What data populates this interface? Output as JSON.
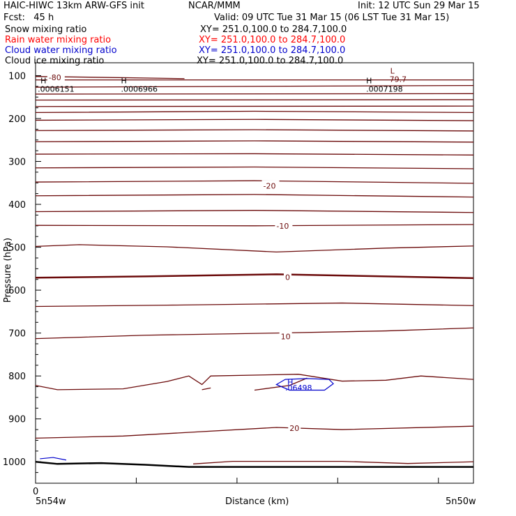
{
  "header": {
    "title": "HAIC-HIWC 13km ARW-GFS init",
    "org": "NCAR/MMM",
    "init": "Init: 12 UTC Sun 29 Mar 15",
    "fcst": "Fcst:   45 h",
    "valid": "Valid: 09 UTC Tue 31 Mar 15 (06 LST Tue 31 Mar 15)"
  },
  "fields": [
    {
      "name": "Snow mixing ratio",
      "xy": "XY= 251.0,100.0 to 284.7,100.0",
      "color": "#000000"
    },
    {
      "name": "Rain water mixing ratio",
      "xy": "XY= 251.0,100.0 to 284.7,100.0",
      "color": "#ff0000"
    },
    {
      "name": "Cloud water mixing ratio",
      "xy": "XY= 251.0,100.0 to 284.7,100.0",
      "color": "#0000cc"
    },
    {
      "name": "Cloud ice mixing ratio",
      "xy": "XY= 251.0,100.0 to 284.7,100.0",
      "color": "#000000"
    }
  ],
  "chart_data": {
    "type": "line",
    "xlabel": "Distance (km)",
    "ylabel": "Pressure (hPa)",
    "x_ticks": [
      "0"
    ],
    "x_end_labels": [
      "5n54w",
      "5n50w"
    ],
    "y_ticks": [
      100,
      200,
      300,
      400,
      500,
      600,
      700,
      800,
      900,
      1000
    ],
    "ylim": [
      1050,
      70
    ],
    "xlim": [
      0,
      100
    ],
    "contour_color": "#6b0a0a",
    "contour_labels": [
      "-80",
      "-20",
      "-10",
      "0",
      "10",
      "20"
    ],
    "series": [
      {
        "name": "-80",
        "x": [
          0,
          15,
          34
        ],
        "y": [
          102,
          104,
          107
        ]
      },
      {
        "points": "iso",
        "x": [
          0,
          100
        ],
        "y": [
          110,
          110
        ]
      },
      {
        "x": [
          0,
          100
        ],
        "y": [
          127,
          123
        ]
      },
      {
        "x": [
          0,
          100
        ],
        "y": [
          143,
          142
        ]
      },
      {
        "x": [
          0,
          100
        ],
        "y": [
          157,
          156
        ]
      },
      {
        "x": [
          0,
          100
        ],
        "y": [
          172,
          171
        ]
      },
      {
        "x": [
          0,
          50,
          100
        ],
        "y": [
          186,
          183,
          186
        ]
      },
      {
        "x": [
          0,
          50,
          100
        ],
        "y": [
          204,
          202,
          205
        ]
      },
      {
        "x": [
          0,
          50,
          100
        ],
        "y": [
          228,
          226,
          229
        ]
      },
      {
        "x": [
          0,
          50,
          100
        ],
        "y": [
          254,
          252,
          255
        ]
      },
      {
        "x": [
          0,
          50,
          100
        ],
        "y": [
          283,
          282,
          285
        ]
      },
      {
        "x": [
          0,
          50,
          100
        ],
        "y": [
          315,
          313,
          317
        ]
      },
      {
        "x": [
          0,
          50,
          100
        ],
        "y": [
          348,
          345,
          351
        ]
      },
      {
        "x": [
          0,
          50,
          100
        ],
        "y": [
          380,
          377,
          383
        ]
      },
      {
        "x": [
          0,
          50,
          100
        ],
        "y": [
          417,
          414,
          419
        ]
      },
      {
        "x": [
          0,
          50,
          100
        ],
        "y": [
          449,
          450,
          447
        ]
      },
      {
        "x": [
          0,
          10,
          30,
          55,
          80,
          100
        ],
        "y": [
          498,
          494,
          499,
          511,
          502,
          497
        ]
      },
      {
        "x": [
          0,
          25,
          55,
          100
        ],
        "y": [
          571,
          568,
          563,
          572
        ]
      },
      {
        "x": [
          0,
          30,
          70,
          100
        ],
        "y": [
          638,
          635,
          630,
          636
        ]
      },
      {
        "x": [
          0,
          25,
          55,
          80,
          100
        ],
        "y": [
          713,
          705,
          700,
          695,
          688
        ]
      },
      {
        "x": [
          0,
          5,
          20,
          30,
          35,
          38,
          40,
          60,
          70,
          80,
          88,
          100
        ],
        "y": [
          822,
          832,
          830,
          813,
          800,
          820,
          800,
          796,
          812,
          810,
          800,
          808
        ]
      },
      {
        "x": [
          38,
          40
        ],
        "y": [
          832,
          828
        ]
      },
      {
        "x": [
          50,
          58,
          62
        ],
        "y": [
          833,
          822,
          805
        ]
      },
      {
        "x": [
          0,
          20,
          55,
          70,
          100
        ],
        "y": [
          945,
          940,
          920,
          925,
          917
        ]
      },
      {
        "x": [
          36,
          45,
          70,
          85,
          100
        ],
        "y": [
          1005,
          999,
          999,
          1004,
          1000
        ]
      }
    ],
    "surface": {
      "x": [
        0,
        5,
        15,
        25,
        35,
        100
      ],
      "y": [
        1000,
        1005,
        1003,
        1007,
        1012,
        1012
      ]
    },
    "cloud_water_contour": {
      "label": ".06498",
      "marker": "H"
    },
    "extrema": [
      {
        "marker": "H",
        "value": ".0006151"
      },
      {
        "marker": "H",
        "value": ".0006966"
      },
      {
        "marker": "H",
        "value": ".0007198"
      },
      {
        "marker": "L",
        "value": "-79.7"
      }
    ]
  }
}
